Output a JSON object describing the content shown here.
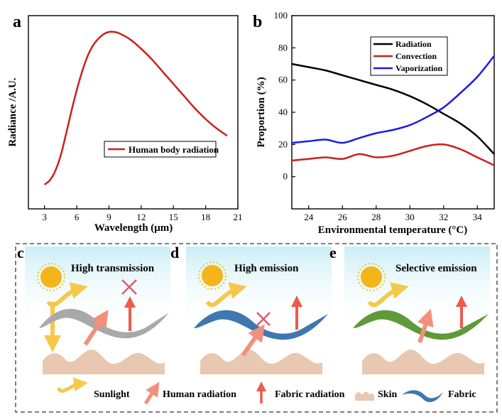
{
  "chart_data": [
    {
      "panel": "a",
      "type": "line",
      "title": "",
      "xlabel": "Wavelength (μm)",
      "ylabel": "Radiance /A.U.",
      "xlim": [
        1.5,
        21
      ],
      "ylim": [
        0,
        1.1
      ],
      "xticks": [
        3,
        6,
        9,
        12,
        15,
        18,
        21
      ],
      "yticks": [],
      "legend_position": "lower-right",
      "series": [
        {
          "name": "Human body radiation",
          "color": "#cc1f1f",
          "x": [
            3,
            3.5,
            4,
            4.5,
            5,
            5.5,
            6,
            6.5,
            7,
            7.5,
            8,
            8.5,
            9,
            9.5,
            10,
            11,
            12,
            13,
            14,
            15,
            16,
            17,
            18,
            19,
            20
          ],
          "y": [
            0.0,
            0.03,
            0.09,
            0.19,
            0.33,
            0.48,
            0.62,
            0.74,
            0.84,
            0.91,
            0.955,
            0.985,
            1.0,
            1.0,
            0.99,
            0.95,
            0.89,
            0.82,
            0.74,
            0.66,
            0.58,
            0.5,
            0.43,
            0.37,
            0.32
          ]
        }
      ]
    },
    {
      "panel": "b",
      "type": "line",
      "title": "",
      "xlabel": "Environmental temperature (°C)",
      "ylabel": "Proportion (%)",
      "xlim": [
        23,
        35
      ],
      "ylim": [
        -20,
        100
      ],
      "xticks": [
        24,
        26,
        28,
        30,
        32,
        34
      ],
      "yticks": [
        0,
        20,
        40,
        60,
        80,
        100
      ],
      "legend_position": "top-right",
      "series": [
        {
          "name": "Radiation",
          "color": "#000000",
          "x": [
            23,
            24,
            25,
            26,
            27,
            28,
            29,
            30,
            31,
            32,
            33,
            34,
            35
          ],
          "y": [
            70,
            68,
            66,
            63,
            60,
            57,
            54,
            50,
            45,
            39,
            33,
            25,
            14
          ]
        },
        {
          "name": "Convection",
          "color": "#cc1f1f",
          "x": [
            23,
            24,
            25,
            26,
            27,
            28,
            29,
            30,
            31,
            32,
            33,
            34,
            35
          ],
          "y": [
            10,
            11,
            12,
            11,
            14,
            12,
            13,
            16,
            19,
            20,
            17,
            12,
            7
          ]
        },
        {
          "name": "Vaporization",
          "color": "#1a1aee",
          "x": [
            23,
            24,
            25,
            26,
            27,
            28,
            29,
            30,
            31,
            32,
            33,
            34,
            35
          ],
          "y": [
            21,
            22,
            23,
            21,
            24,
            27,
            29,
            32,
            37,
            43,
            52,
            62,
            75
          ]
        }
      ]
    }
  ],
  "panels": {
    "a": {
      "letter": "a"
    },
    "b": {
      "letter": "b"
    },
    "c": {
      "letter": "c",
      "title": "High transmission"
    },
    "d": {
      "letter": "d",
      "title": "High emission"
    },
    "e": {
      "letter": "e",
      "title": "Selective emission"
    }
  },
  "legend": {
    "sunlight": "Sunlight",
    "human_radiation": "Human radiation",
    "fabric_radiation": "Fabric radiation",
    "skin": "Skin",
    "fabric": "Fabric"
  },
  "colors": {
    "sky": "#d9f4f9",
    "sun": "#f7c21a",
    "skin": "#e8c8b0",
    "fabric_gray": "#a9a9a9",
    "fabric_blue": "#3f77b0",
    "fabric_green": "#5f9a3a",
    "arrow_red": "#ee5a4c",
    "human_arrow": "#f3907c",
    "cross": "#e05a6a"
  }
}
